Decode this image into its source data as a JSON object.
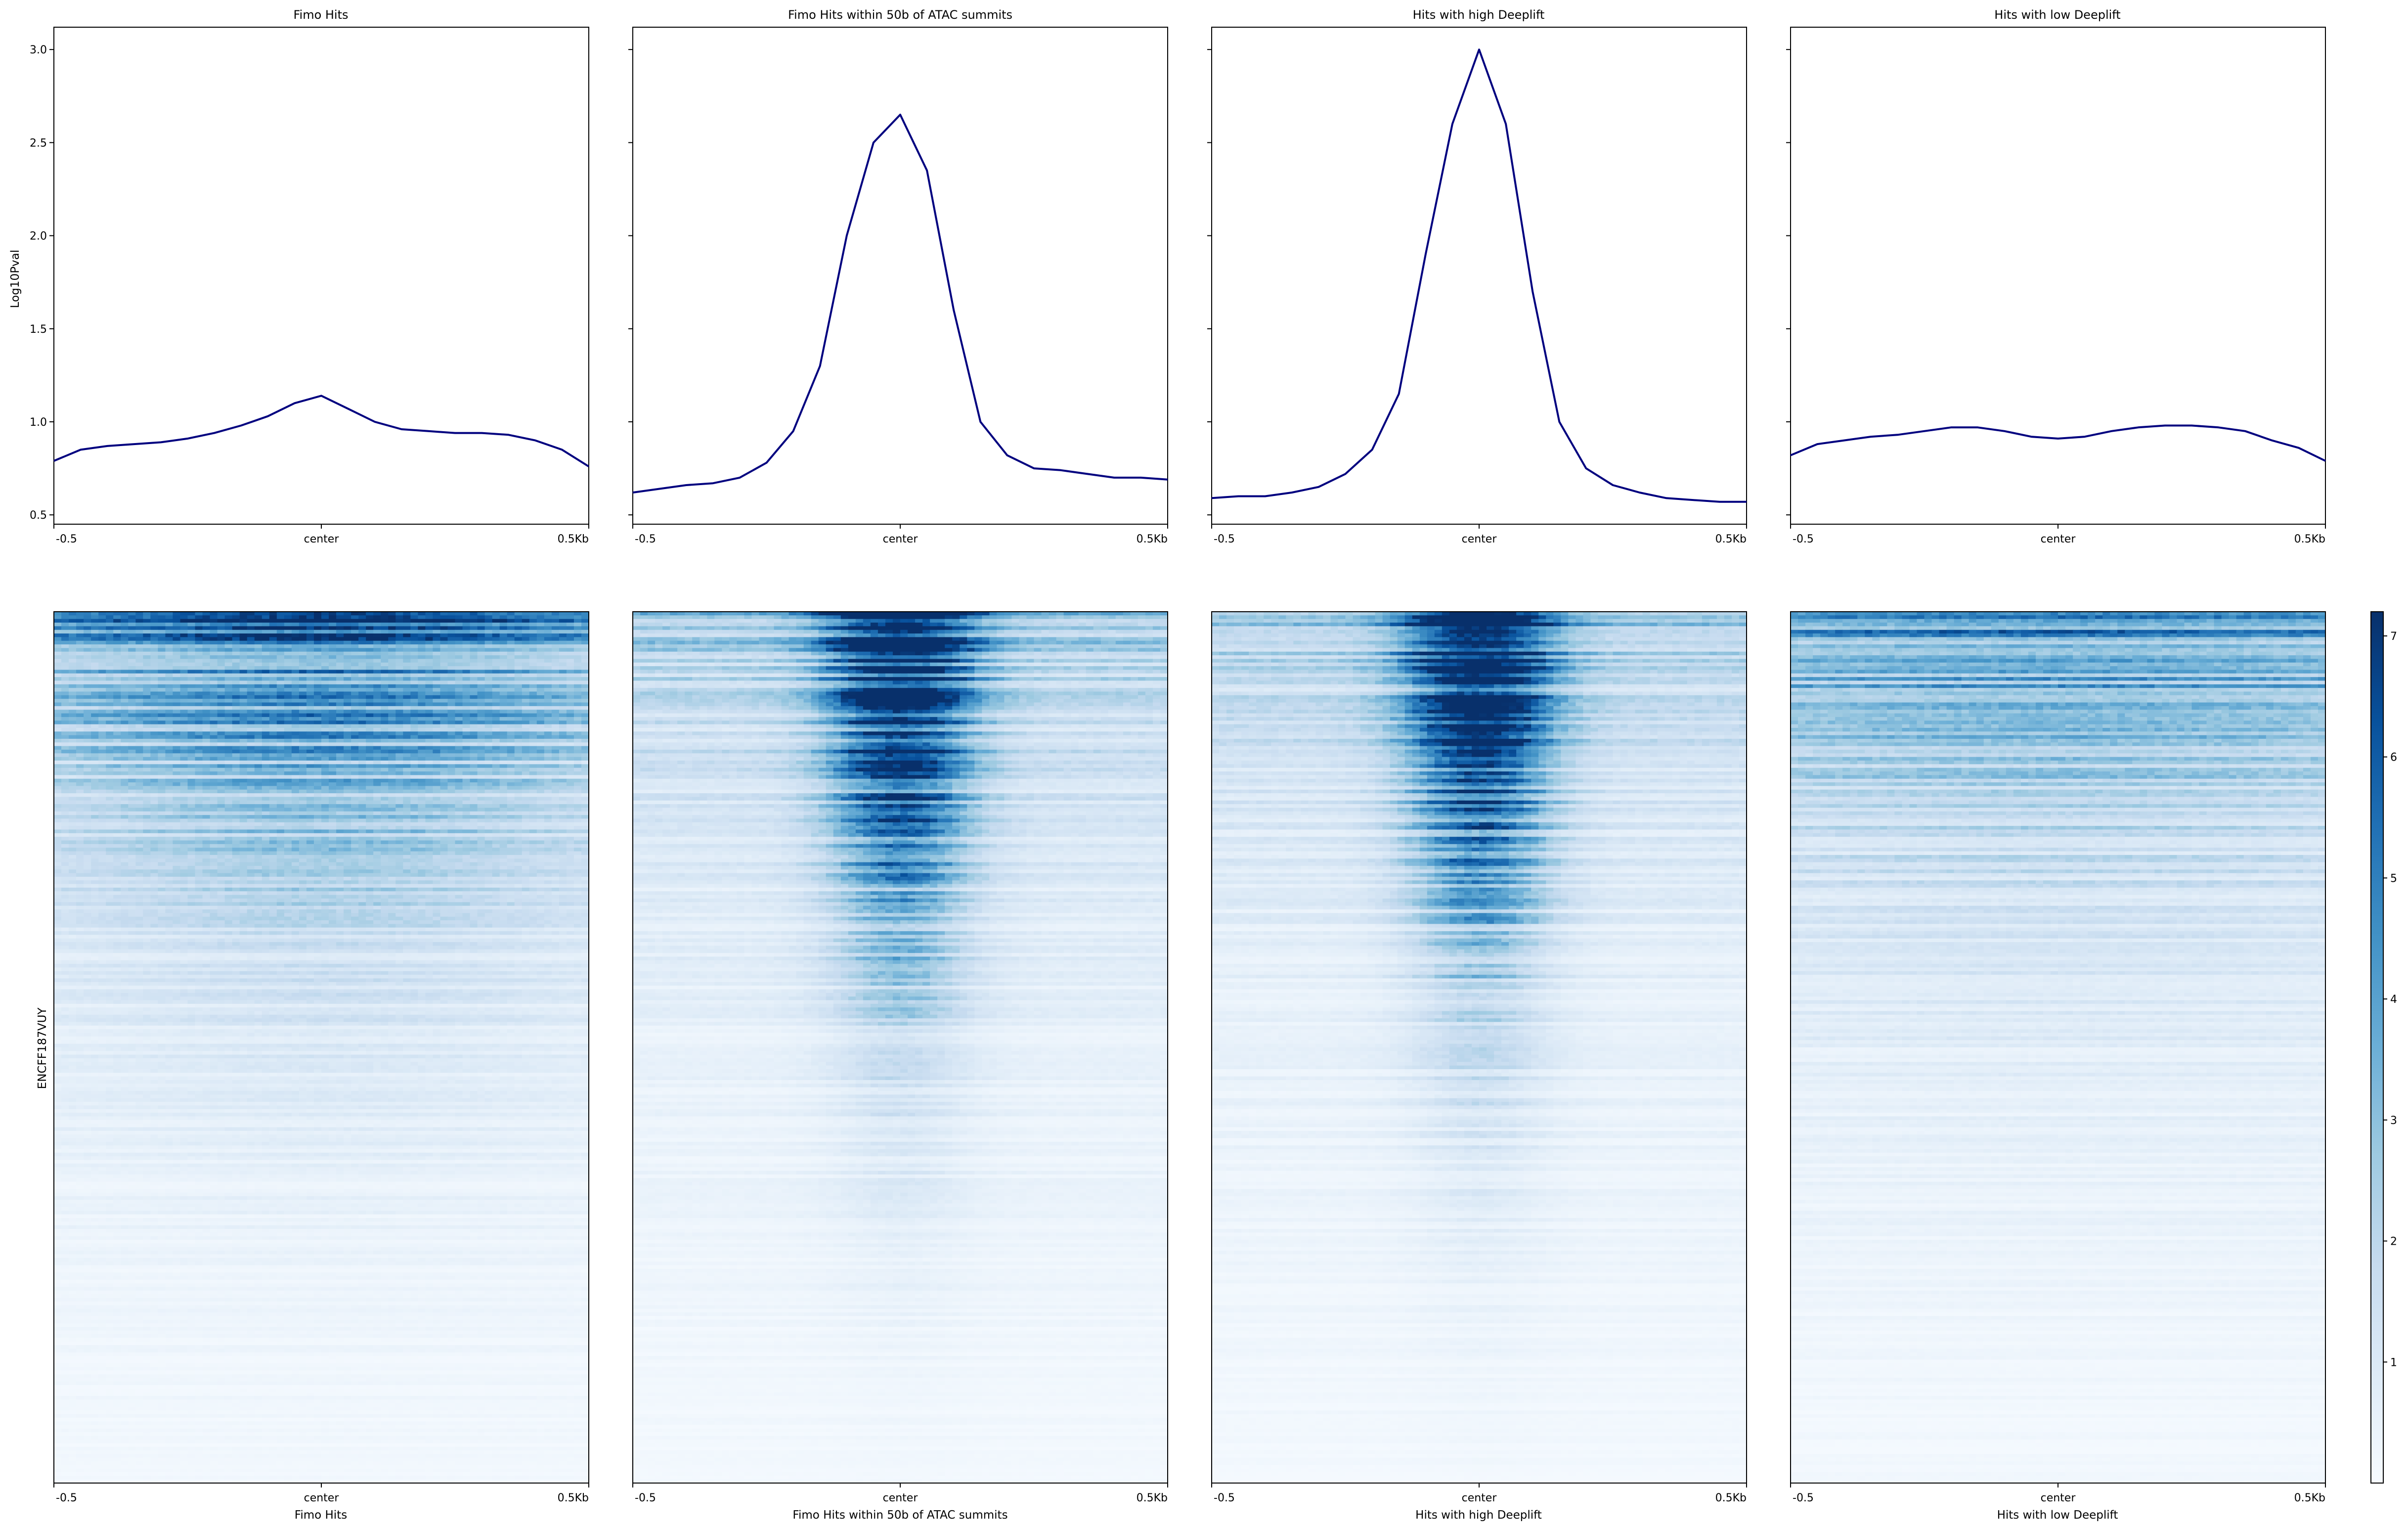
{
  "chart_data": {
    "type": "line",
    "shared_x_ticks": [
      "-0.5",
      "center",
      "0.5Kb"
    ],
    "profile": {
      "ylabel": "Log10Pval",
      "ylim": [
        0.45,
        3.12
      ],
      "yticks": [
        "0.5",
        "1.0",
        "1.5",
        "2.0",
        "2.5",
        "3.0"
      ],
      "line_color": "#00007f"
    },
    "panels": [
      {
        "title": "Fimo Hits",
        "xlabel": "Fimo Hits",
        "profile_x": [
          -0.5,
          -0.45,
          -0.4,
          -0.35,
          -0.3,
          -0.25,
          -0.2,
          -0.15,
          -0.1,
          -0.05,
          0.0,
          0.05,
          0.1,
          0.15,
          0.2,
          0.25,
          0.3,
          0.35,
          0.4,
          0.45,
          0.5
        ],
        "profile_y": [
          0.79,
          0.85,
          0.87,
          0.88,
          0.89,
          0.91,
          0.94,
          0.98,
          1.03,
          1.1,
          1.14,
          1.07,
          1.0,
          0.96,
          0.95,
          0.94,
          0.94,
          0.93,
          0.9,
          0.85,
          0.76
        ],
        "heat_peak": 2.3,
        "heat_width": 0.3,
        "heat_background": 2.8
      },
      {
        "title": "Fimo Hits within 50b of ATAC summits",
        "xlabel": "Fimo Hits within 50b of ATAC summits",
        "profile_x": [
          -0.5,
          -0.45,
          -0.4,
          -0.35,
          -0.3,
          -0.25,
          -0.2,
          -0.15,
          -0.1,
          -0.05,
          0.0,
          0.05,
          0.1,
          0.15,
          0.2,
          0.25,
          0.3,
          0.35,
          0.4,
          0.45,
          0.5
        ],
        "profile_y": [
          0.62,
          0.64,
          0.66,
          0.67,
          0.7,
          0.78,
          0.95,
          1.3,
          2.0,
          2.5,
          2.65,
          2.35,
          1.6,
          1.0,
          0.82,
          0.75,
          0.74,
          0.72,
          0.7,
          0.7,
          0.69
        ],
        "heat_peak": 7.0,
        "heat_width": 0.09,
        "heat_background": 2.0
      },
      {
        "title": "Hits with high Deeplift",
        "xlabel": "Hits with high Deeplift",
        "profile_x": [
          -0.5,
          -0.45,
          -0.4,
          -0.35,
          -0.3,
          -0.25,
          -0.2,
          -0.15,
          -0.1,
          -0.05,
          0.0,
          0.05,
          0.1,
          0.15,
          0.2,
          0.25,
          0.3,
          0.35,
          0.4,
          0.45,
          0.5
        ],
        "profile_y": [
          0.59,
          0.6,
          0.6,
          0.62,
          0.65,
          0.72,
          0.85,
          1.15,
          1.9,
          2.6,
          3.0,
          2.6,
          1.7,
          1.0,
          0.75,
          0.66,
          0.62,
          0.59,
          0.58,
          0.57,
          0.57
        ],
        "heat_peak": 7.2,
        "heat_width": 0.09,
        "heat_background": 1.8
      },
      {
        "title": "Hits with low Deeplift",
        "xlabel": "Hits with low Deeplift",
        "profile_x": [
          -0.5,
          -0.45,
          -0.4,
          -0.35,
          -0.3,
          -0.25,
          -0.2,
          -0.15,
          -0.1,
          -0.05,
          0.0,
          0.05,
          0.1,
          0.15,
          0.2,
          0.25,
          0.3,
          0.35,
          0.4,
          0.45,
          0.5
        ],
        "profile_y": [
          0.82,
          0.88,
          0.9,
          0.92,
          0.93,
          0.95,
          0.97,
          0.97,
          0.95,
          0.92,
          0.91,
          0.92,
          0.95,
          0.97,
          0.98,
          0.98,
          0.97,
          0.95,
          0.9,
          0.86,
          0.79
        ],
        "heat_peak": 0.9,
        "heat_width": 0.4,
        "heat_background": 3.0
      }
    ],
    "heatmap": {
      "type": "heatmap",
      "ylabel": "ENCFF187VUY",
      "colormap": "Blues",
      "colorbar_range": [
        0,
        7.2
      ],
      "colorbar_ticks": [
        "1",
        "2",
        "3",
        "4",
        "5",
        "6",
        "7"
      ]
    }
  }
}
